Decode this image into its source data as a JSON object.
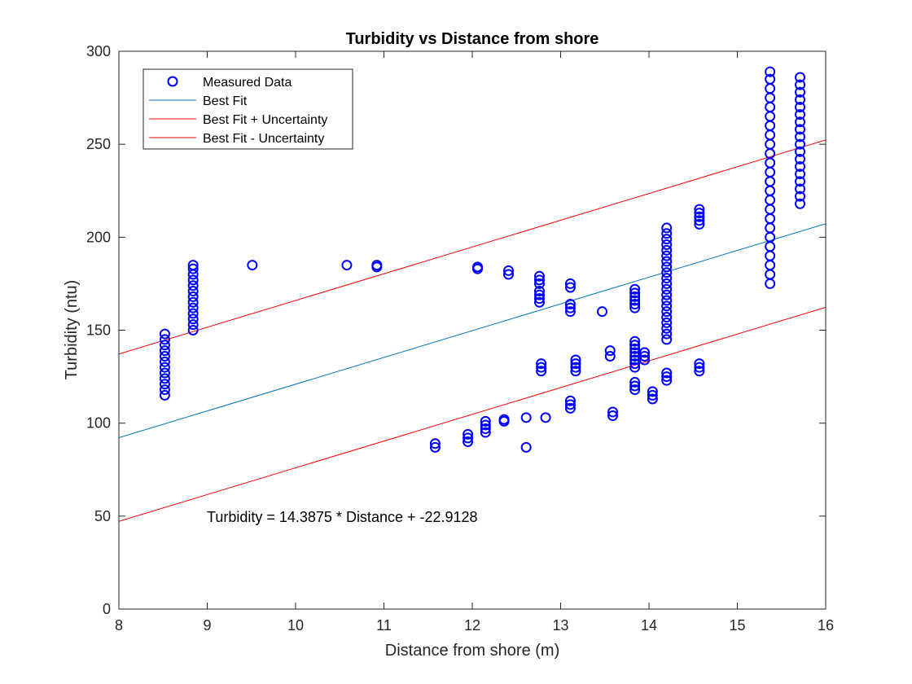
{
  "chart_data": {
    "type": "scatter",
    "title": "Turbidity vs Distance from shore",
    "xlabel": "Distance from shore (m)",
    "ylabel": "Turbidity (ntu)",
    "xlim": [
      8,
      16
    ],
    "ylim": [
      0,
      300
    ],
    "xticks": [
      8,
      9,
      10,
      11,
      12,
      13,
      14,
      15,
      16
    ],
    "yticks": [
      0,
      50,
      100,
      150,
      200,
      250,
      300
    ],
    "grid": false,
    "legend_position": "top-left",
    "annotation": "Turbidity = 14.3875 * Distance + -22.9128",
    "colors": {
      "measured": "#0000ff",
      "best_fit": "#0072bd",
      "uncertainty": "#ff0000",
      "axes": "#262626"
    },
    "series": [
      {
        "name": "Measured Data",
        "kind": "scatter",
        "marker": "circle-open",
        "points": [
          [
            8.52,
            115
          ],
          [
            8.52,
            118
          ],
          [
            8.52,
            121
          ],
          [
            8.52,
            124
          ],
          [
            8.52,
            127
          ],
          [
            8.52,
            130
          ],
          [
            8.52,
            133
          ],
          [
            8.52,
            136
          ],
          [
            8.52,
            139
          ],
          [
            8.52,
            142
          ],
          [
            8.52,
            145
          ],
          [
            8.52,
            148
          ],
          [
            8.84,
            150
          ],
          [
            8.84,
            153
          ],
          [
            8.84,
            156
          ],
          [
            8.84,
            159
          ],
          [
            8.84,
            162
          ],
          [
            8.84,
            165
          ],
          [
            8.84,
            168
          ],
          [
            8.84,
            171
          ],
          [
            8.84,
            174
          ],
          [
            8.84,
            177
          ],
          [
            8.84,
            180
          ],
          [
            8.84,
            183
          ],
          [
            8.84,
            185
          ],
          [
            9.51,
            185
          ],
          [
            10.58,
            185
          ],
          [
            10.92,
            184
          ],
          [
            10.92,
            185
          ],
          [
            12.06,
            183
          ],
          [
            12.06,
            184
          ],
          [
            12.41,
            180
          ],
          [
            12.41,
            182
          ],
          [
            12.76,
            165
          ],
          [
            12.76,
            167
          ],
          [
            12.76,
            169
          ],
          [
            12.76,
            171
          ],
          [
            12.76,
            175
          ],
          [
            12.76,
            177
          ],
          [
            12.76,
            179
          ],
          [
            12.78,
            128
          ],
          [
            12.78,
            130
          ],
          [
            12.78,
            132
          ],
          [
            13.11,
            160
          ],
          [
            13.11,
            162
          ],
          [
            13.11,
            164
          ],
          [
            13.11,
            173
          ],
          [
            13.11,
            175
          ],
          [
            13.11,
            108
          ],
          [
            13.11,
            110
          ],
          [
            13.11,
            112
          ],
          [
            13.17,
            128
          ],
          [
            13.17,
            130
          ],
          [
            13.17,
            132
          ],
          [
            13.17,
            134
          ],
          [
            13.47,
            160
          ],
          [
            13.56,
            136
          ],
          [
            13.56,
            139
          ],
          [
            13.59,
            104
          ],
          [
            13.59,
            106
          ],
          [
            11.58,
            87
          ],
          [
            11.58,
            89
          ],
          [
            11.95,
            90
          ],
          [
            11.95,
            92
          ],
          [
            11.95,
            94
          ],
          [
            12.15,
            95
          ],
          [
            12.15,
            97
          ],
          [
            12.15,
            99
          ],
          [
            12.15,
            101
          ],
          [
            12.36,
            101
          ],
          [
            12.36,
            102
          ],
          [
            12.61,
            103
          ],
          [
            12.61,
            87
          ],
          [
            12.83,
            103
          ],
          [
            13.84,
            162
          ],
          [
            13.84,
            164
          ],
          [
            13.84,
            166
          ],
          [
            13.84,
            168
          ],
          [
            13.84,
            170
          ],
          [
            13.84,
            172
          ],
          [
            13.84,
            118
          ],
          [
            13.84,
            120
          ],
          [
            13.84,
            122
          ],
          [
            13.84,
            130
          ],
          [
            13.84,
            132
          ],
          [
            13.84,
            134
          ],
          [
            13.84,
            136
          ],
          [
            13.84,
            138
          ],
          [
            13.84,
            140
          ],
          [
            13.84,
            142
          ],
          [
            13.84,
            144
          ],
          [
            13.95,
            134
          ],
          [
            13.95,
            136
          ],
          [
            13.95,
            138
          ],
          [
            14.04,
            113
          ],
          [
            14.04,
            115
          ],
          [
            14.04,
            117
          ],
          [
            14.2,
            123
          ],
          [
            14.2,
            125
          ],
          [
            14.2,
            127
          ],
          [
            14.2,
            145
          ],
          [
            14.2,
            148
          ],
          [
            14.2,
            151
          ],
          [
            14.2,
            154
          ],
          [
            14.2,
            157
          ],
          [
            14.2,
            160
          ],
          [
            14.2,
            163
          ],
          [
            14.2,
            166
          ],
          [
            14.2,
            169
          ],
          [
            14.2,
            172
          ],
          [
            14.2,
            175
          ],
          [
            14.2,
            178
          ],
          [
            14.2,
            181
          ],
          [
            14.2,
            184
          ],
          [
            14.2,
            187
          ],
          [
            14.2,
            190
          ],
          [
            14.2,
            193
          ],
          [
            14.2,
            196
          ],
          [
            14.2,
            199
          ],
          [
            14.2,
            202
          ],
          [
            14.2,
            205
          ],
          [
            14.57,
            128
          ],
          [
            14.57,
            130
          ],
          [
            14.57,
            132
          ],
          [
            14.57,
            207
          ],
          [
            14.57,
            209
          ],
          [
            14.57,
            211
          ],
          [
            14.57,
            213
          ],
          [
            14.57,
            215
          ],
          [
            15.37,
            175
          ],
          [
            15.37,
            180
          ],
          [
            15.37,
            185
          ],
          [
            15.37,
            190
          ],
          [
            15.37,
            195
          ],
          [
            15.37,
            200
          ],
          [
            15.37,
            205
          ],
          [
            15.37,
            210
          ],
          [
            15.37,
            215
          ],
          [
            15.37,
            220
          ],
          [
            15.37,
            225
          ],
          [
            15.37,
            230
          ],
          [
            15.37,
            235
          ],
          [
            15.37,
            240
          ],
          [
            15.37,
            245
          ],
          [
            15.37,
            250
          ],
          [
            15.37,
            255
          ],
          [
            15.37,
            260
          ],
          [
            15.37,
            265
          ],
          [
            15.37,
            270
          ],
          [
            15.37,
            275
          ],
          [
            15.37,
            280
          ],
          [
            15.37,
            285
          ],
          [
            15.37,
            289
          ],
          [
            15.71,
            218
          ],
          [
            15.71,
            222
          ],
          [
            15.71,
            226
          ],
          [
            15.71,
            230
          ],
          [
            15.71,
            234
          ],
          [
            15.71,
            238
          ],
          [
            15.71,
            242
          ],
          [
            15.71,
            246
          ],
          [
            15.71,
            250
          ],
          [
            15.71,
            254
          ],
          [
            15.71,
            258
          ],
          [
            15.71,
            262
          ],
          [
            15.71,
            266
          ],
          [
            15.71,
            270
          ],
          [
            15.71,
            274
          ],
          [
            15.71,
            278
          ],
          [
            15.71,
            282
          ],
          [
            15.71,
            286
          ]
        ]
      },
      {
        "name": "Best Fit",
        "kind": "line",
        "x": [
          8,
          16
        ],
        "y": [
          92.19,
          207.29
        ]
      },
      {
        "name": "Best Fit + Uncertainty",
        "kind": "line",
        "x": [
          8,
          16
        ],
        "y": [
          137.2,
          252.3
        ]
      },
      {
        "name": "Best Fit - Uncertainty",
        "kind": "line",
        "x": [
          8,
          16
        ],
        "y": [
          47.2,
          162.3
        ]
      }
    ]
  }
}
